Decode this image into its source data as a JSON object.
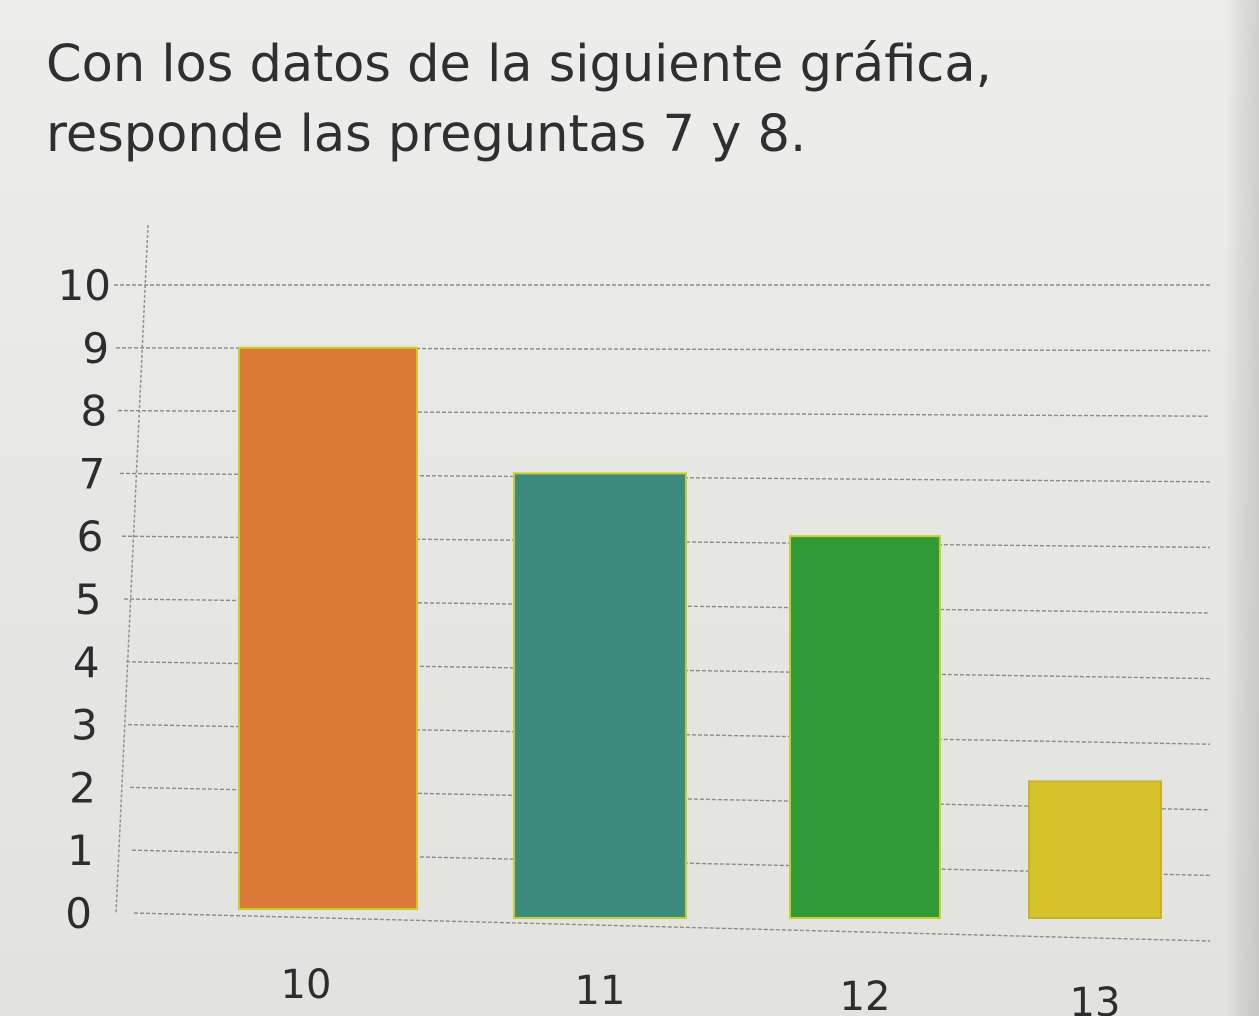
{
  "instruction": {
    "line1": "Con los datos de la siguiente gráfica,",
    "line2": "responde las preguntas 7 y 8."
  },
  "chart_data": {
    "type": "bar",
    "categories": [
      "10",
      "11",
      "12",
      "13"
    ],
    "values": [
      9,
      7,
      6,
      2
    ],
    "ylim": [
      0,
      10
    ],
    "y_ticks": [
      "0",
      "1",
      "2",
      "3",
      "4",
      "5",
      "6",
      "7",
      "8",
      "9",
      "10"
    ],
    "grid": true,
    "title": "",
    "xlabel": "",
    "ylabel": "",
    "colors": [
      "#d97a37",
      "#3d8b7e",
      "#2f9a36",
      "#d6c22a"
    ]
  }
}
